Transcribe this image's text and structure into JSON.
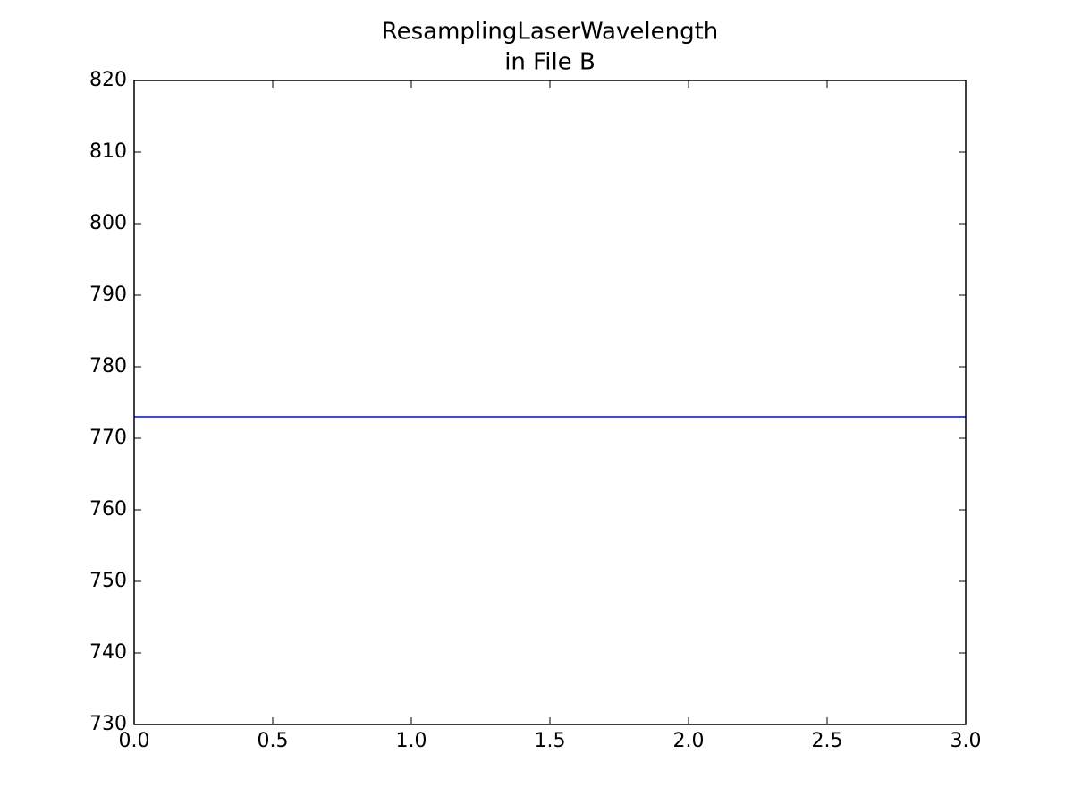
{
  "chart_data": {
    "type": "line",
    "title": [
      "ResamplingLaserWavelength",
      "in File B"
    ],
    "x": [
      0,
      1,
      2,
      3
    ],
    "series": [
      {
        "color": "#0000ff",
        "values": [
          773,
          773,
          773,
          773
        ]
      }
    ],
    "xlim": [
      0,
      3
    ],
    "xticks": [
      {
        "value": 0,
        "label": "0.0"
      },
      0.5,
      {
        "value": 1,
        "label": "1.0"
      },
      1.5,
      {
        "value": 2,
        "label": "2.0"
      },
      2.5,
      {
        "value": 3,
        "label": "3.0"
      }
    ],
    "ylim": [
      730,
      820
    ],
    "yticks": [
      730,
      740,
      750,
      760,
      770,
      780,
      790,
      800,
      810,
      820
    ],
    "grid": false
  }
}
